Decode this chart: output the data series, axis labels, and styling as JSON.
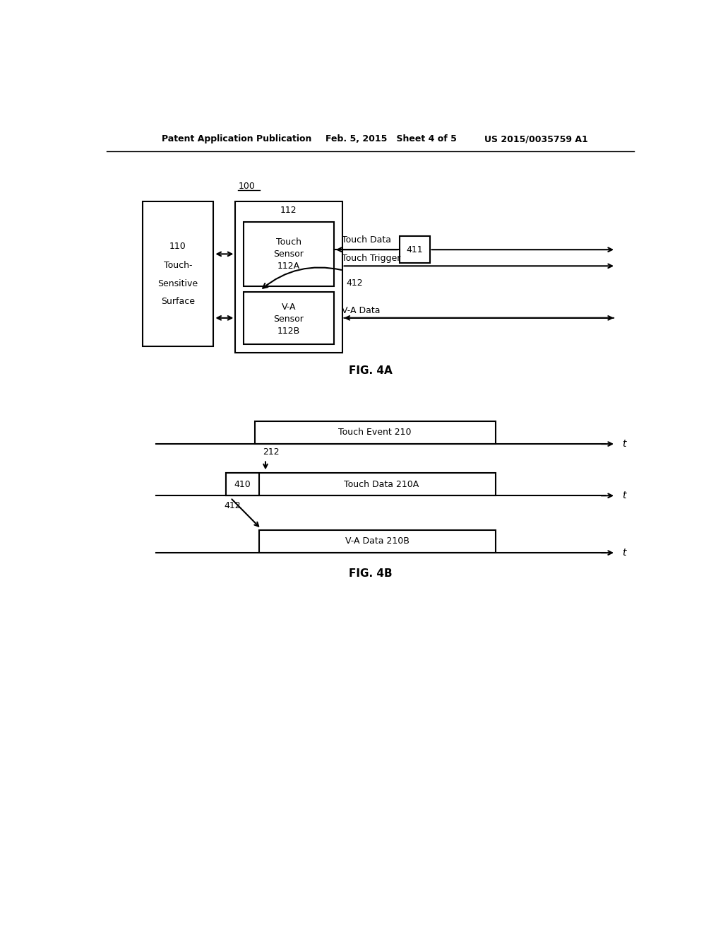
{
  "bg_color": "#ffffff",
  "header_left": "Patent Application Publication",
  "header_mid": "Feb. 5, 2015   Sheet 4 of 5",
  "header_right": "US 2015/0035759 A1",
  "fig4a_label": "FIG. 4A",
  "fig4b_label": "FIG. 4B",
  "label_100": "100",
  "label_112": "112",
  "label_110_lines": [
    "110",
    "Touch-",
    "Sensitive",
    "Surface"
  ],
  "label_112A_lines": [
    "Touch",
    "Sensor",
    "112A"
  ],
  "label_112B_lines": [
    "V-A",
    "Sensor",
    "112B"
  ],
  "label_411": "411",
  "label_412_4a": "412",
  "label_touch_data": "Touch Data",
  "label_touch_trigger": "Touch Trigger",
  "label_va_data": "V-A Data",
  "label_touch_event": "Touch Event 210",
  "label_touch_data_210a": "Touch Data 210A",
  "label_va_data_210b": "V-A Data 210B",
  "label_410": "410",
  "label_412_4b": "412",
  "label_212": "212"
}
